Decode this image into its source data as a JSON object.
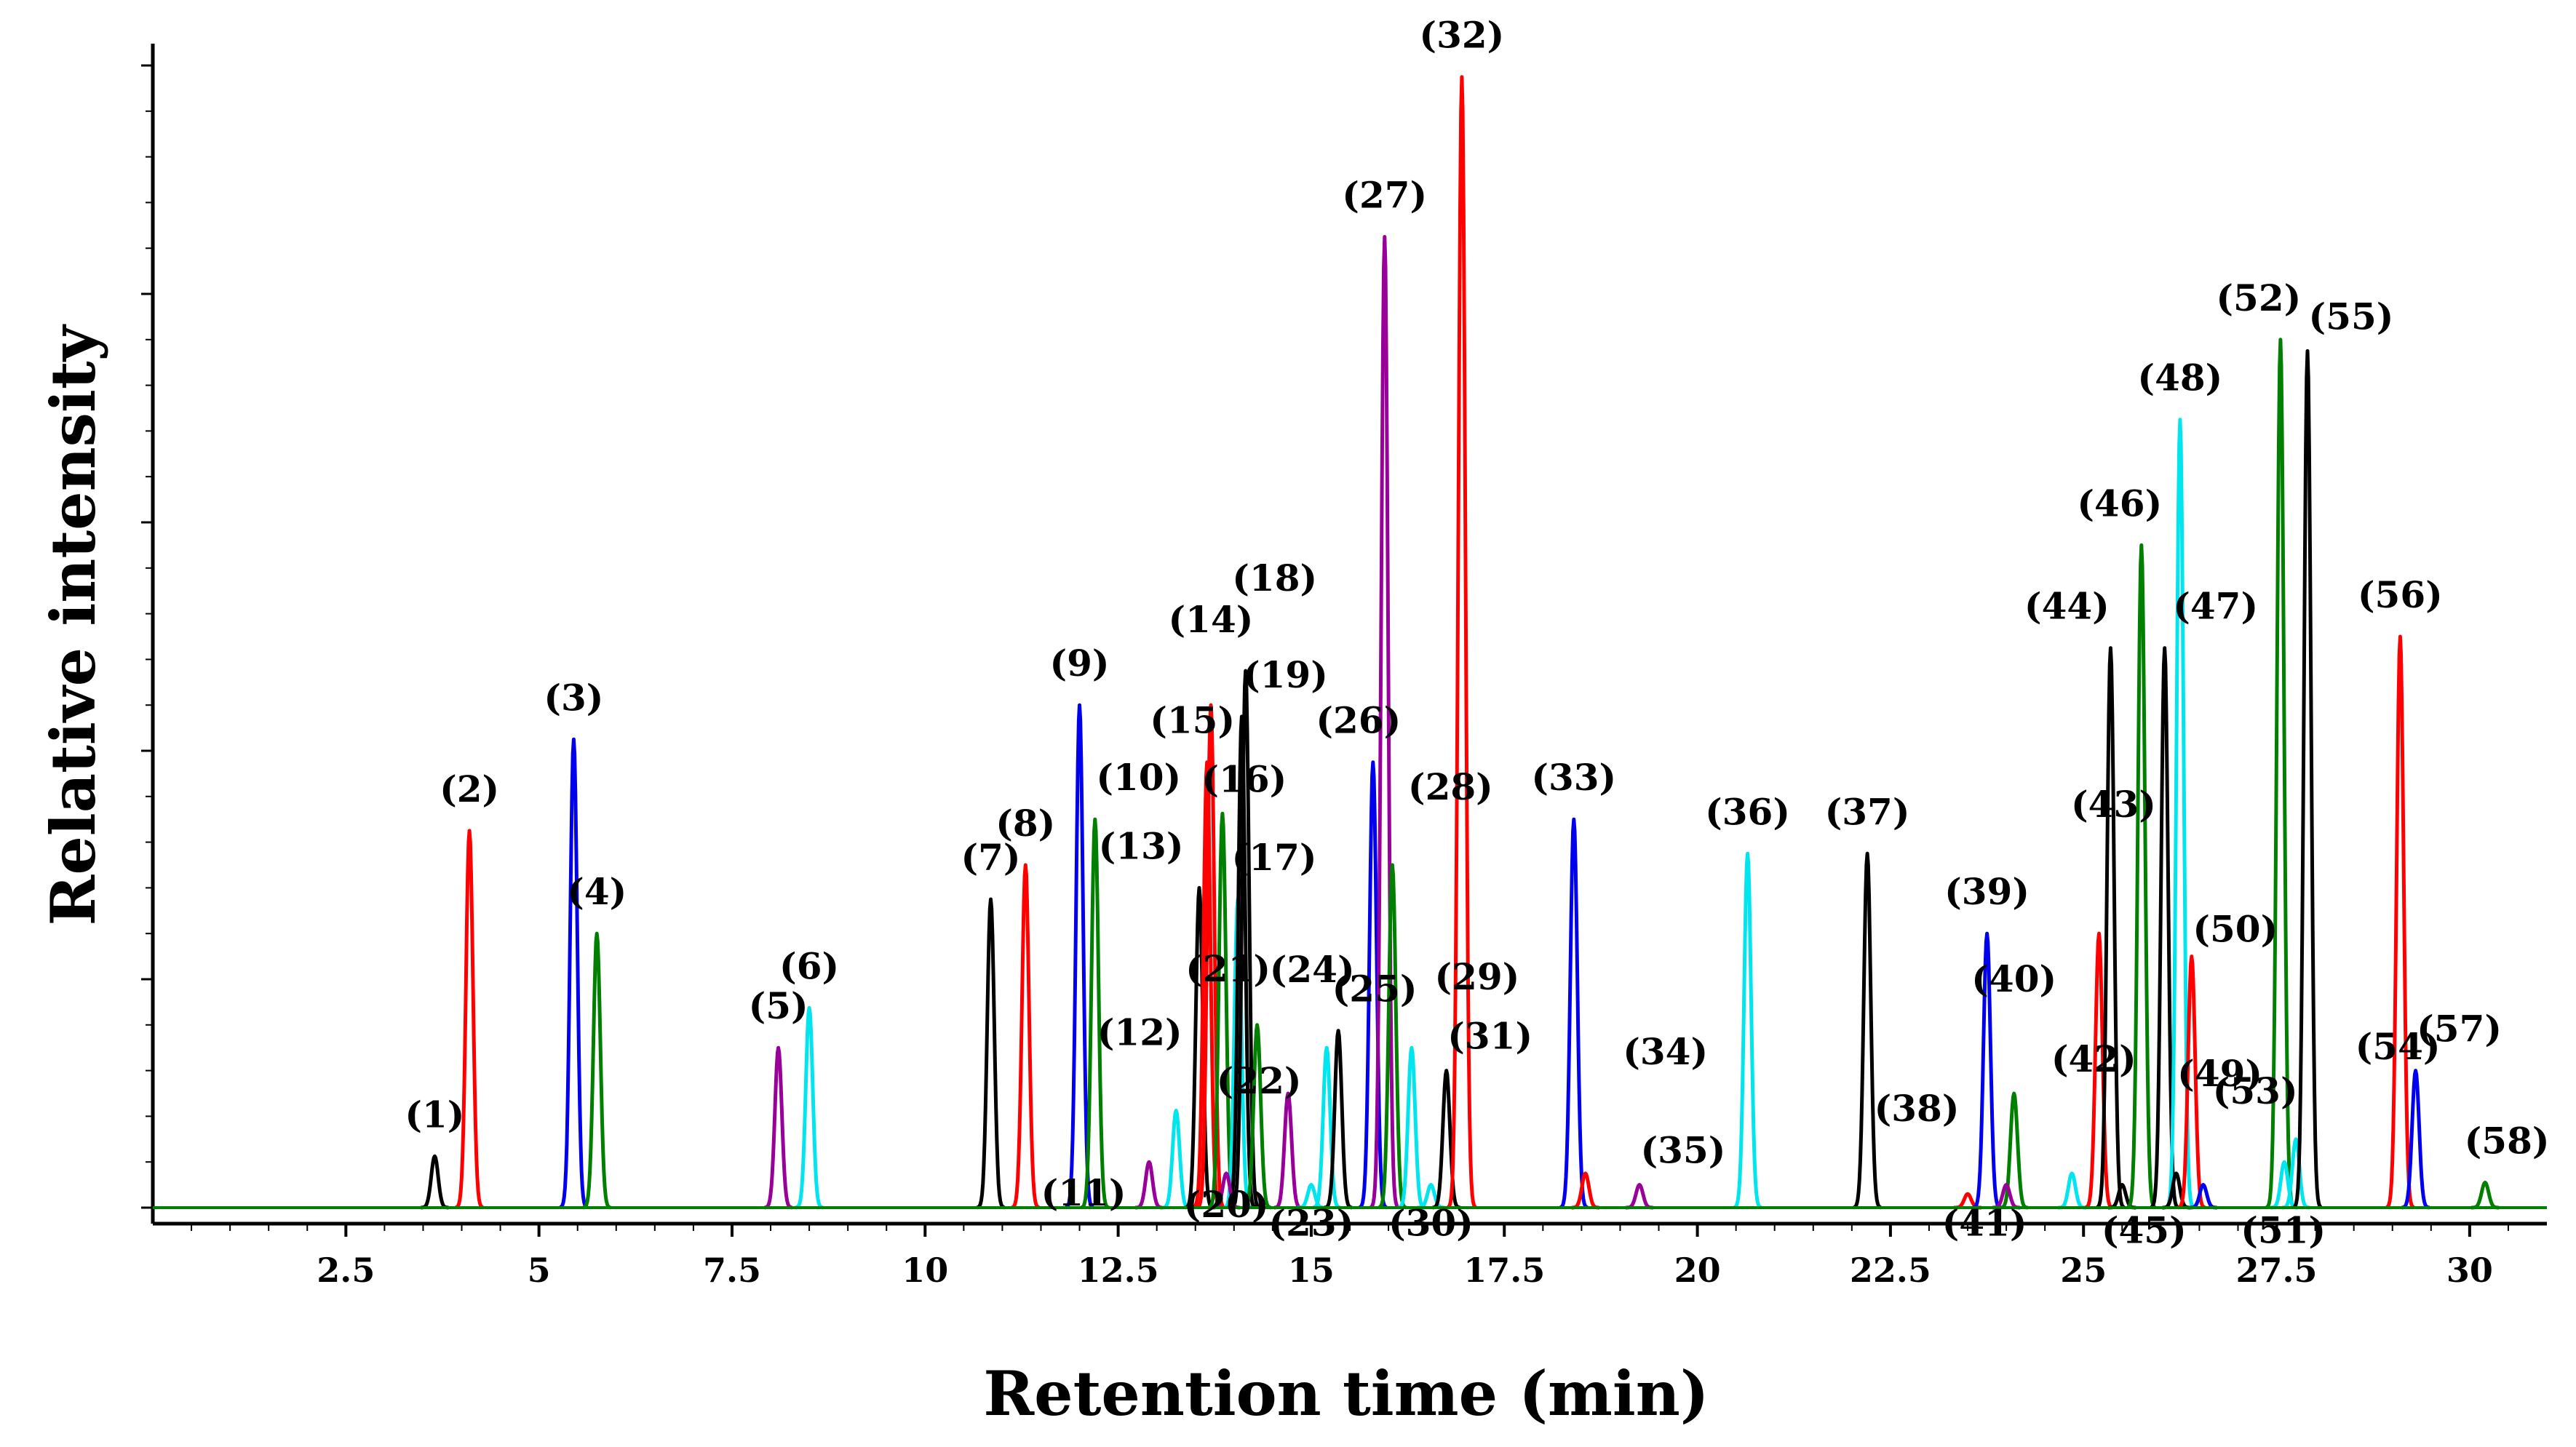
{
  "chart_data": {
    "type": "line",
    "title": "",
    "xlabel": "Retention time (min)",
    "ylabel": "Relative intensity",
    "xlim": [
      0,
      31
    ],
    "ylim": [
      0,
      100
    ],
    "x_ticks": [
      "2.5",
      "5",
      "7.5",
      "10",
      "12.5",
      "15",
      "17.5",
      "20",
      "22.5",
      "25",
      "27.5",
      "30"
    ],
    "x_tick_values": [
      2.5,
      5,
      7.5,
      10,
      12.5,
      15,
      17.5,
      20,
      22.5,
      25,
      27.5,
      30
    ],
    "colors": {
      "black": "#000000",
      "red": "#ff0000",
      "blue": "#0000ee",
      "green": "#007f00",
      "cyan": "#00e5ee",
      "purple": "#990099"
    },
    "peaks": [
      {
        "label": "(1)",
        "rt": 3.65,
        "height": 4.5,
        "color": "black"
      },
      {
        "label": "(2)",
        "rt": 4.1,
        "height": 33,
        "color": "red"
      },
      {
        "label": "(3)",
        "rt": 5.45,
        "height": 41,
        "color": "blue"
      },
      {
        "label": "(4)",
        "rt": 5.75,
        "height": 24,
        "color": "green"
      },
      {
        "label": "(5)",
        "rt": 8.1,
        "height": 14,
        "color": "purple"
      },
      {
        "label": "(6)",
        "rt": 8.5,
        "height": 17.5,
        "color": "cyan"
      },
      {
        "label": "(7)",
        "rt": 10.85,
        "height": 27,
        "color": "black"
      },
      {
        "label": "(8)",
        "rt": 11.3,
        "height": 30,
        "color": "red"
      },
      {
        "label": "(9)",
        "rt": 12.0,
        "height": 44,
        "color": "blue"
      },
      {
        "label": "(10)",
        "rt": 12.2,
        "height": 34,
        "color": "green"
      },
      {
        "label": "(11)",
        "rt": 12.9,
        "height": 4,
        "color": "purple"
      },
      {
        "label": "(12)",
        "rt": 13.25,
        "height": 8.5,
        "color": "cyan"
      },
      {
        "label": "(13)",
        "rt": 13.55,
        "height": 28,
        "color": "black"
      },
      {
        "label": "(14)",
        "rt": 13.7,
        "height": 44,
        "color": "red"
      },
      {
        "label": "(15)",
        "rt": 13.65,
        "height": 39,
        "color": "red"
      },
      {
        "label": "(16)",
        "rt": 13.85,
        "height": 34.5,
        "color": "green"
      },
      {
        "label": "(17)",
        "rt": 14.05,
        "height": 27,
        "color": "cyan"
      },
      {
        "label": "(18)",
        "rt": 14.15,
        "height": 47,
        "color": "black"
      },
      {
        "label": "(19)",
        "rt": 14.1,
        "height": 43,
        "color": "black"
      },
      {
        "label": "(20)",
        "rt": 13.9,
        "height": 3,
        "color": "purple"
      },
      {
        "label": "(21)",
        "rt": 14.3,
        "height": 16,
        "color": "green"
      },
      {
        "label": "(22)",
        "rt": 14.7,
        "height": 10,
        "color": "purple"
      },
      {
        "label": "(23)",
        "rt": 15.0,
        "height": 2,
        "color": "cyan"
      },
      {
        "label": "(24)",
        "rt": 15.2,
        "height": 14,
        "color": "cyan"
      },
      {
        "label": "(25)",
        "rt": 15.35,
        "height": 15.5,
        "color": "black"
      },
      {
        "label": "(26)",
        "rt": 15.8,
        "height": 39,
        "color": "blue"
      },
      {
        "label": "(27)",
        "rt": 15.95,
        "height": 85,
        "color": "purple"
      },
      {
        "label": "(28)",
        "rt": 16.05,
        "height": 30,
        "color": "green"
      },
      {
        "label": "(29)",
        "rt": 16.3,
        "height": 14,
        "color": "cyan"
      },
      {
        "label": "(30)",
        "rt": 16.55,
        "height": 2,
        "color": "cyan"
      },
      {
        "label": "(31)",
        "rt": 16.75,
        "height": 12,
        "color": "black"
      },
      {
        "label": "(32)",
        "rt": 16.95,
        "height": 99,
        "color": "red"
      },
      {
        "label": "(33)",
        "rt": 18.4,
        "height": 34,
        "color": "blue"
      },
      {
        "label": "(34)",
        "rt": 18.55,
        "height": 3,
        "color": "red"
      },
      {
        "label": "(35)",
        "rt": 19.25,
        "height": 2,
        "color": "purple"
      },
      {
        "label": "(36)",
        "rt": 20.65,
        "height": 31,
        "color": "cyan"
      },
      {
        "label": "(37)",
        "rt": 22.2,
        "height": 31,
        "color": "black"
      },
      {
        "label": "(38)",
        "rt": 23.5,
        "height": 1.2,
        "color": "red"
      },
      {
        "label": "(39)",
        "rt": 23.75,
        "height": 24,
        "color": "blue"
      },
      {
        "label": "(40)",
        "rt": 24.1,
        "height": 10,
        "color": "green"
      },
      {
        "label": "(41)",
        "rt": 24.0,
        "height": 2,
        "color": "purple"
      },
      {
        "label": "(42)",
        "rt": 24.85,
        "height": 3,
        "color": "cyan"
      },
      {
        "label": "(43)",
        "rt": 25.2,
        "height": 24,
        "color": "red"
      },
      {
        "label": "(44)",
        "rt": 25.35,
        "height": 49,
        "color": "black"
      },
      {
        "label": "(45)",
        "rt": 25.5,
        "height": 2,
        "color": "black"
      },
      {
        "label": "(46)",
        "rt": 25.75,
        "height": 58,
        "color": "green"
      },
      {
        "label": "(47)",
        "rt": 26.05,
        "height": 49,
        "color": "black"
      },
      {
        "label": "(48)",
        "rt": 26.25,
        "height": 69,
        "color": "cyan"
      },
      {
        "label": "(49)",
        "rt": 26.2,
        "height": 3,
        "color": "black"
      },
      {
        "label": "(50)",
        "rt": 26.4,
        "height": 22,
        "color": "red"
      },
      {
        "label": "(51)",
        "rt": 26.55,
        "height": 2,
        "color": "blue"
      },
      {
        "label": "(52)",
        "rt": 27.55,
        "height": 76,
        "color": "green"
      },
      {
        "label": "(53)",
        "rt": 27.6,
        "height": 4,
        "color": "cyan"
      },
      {
        "label": "(54)",
        "rt": 27.75,
        "height": 6,
        "color": "cyan"
      },
      {
        "label": "(55)",
        "rt": 27.9,
        "height": 75,
        "color": "black"
      },
      {
        "label": "(56)",
        "rt": 29.1,
        "height": 50,
        "color": "red"
      },
      {
        "label": "(57)",
        "rt": 29.3,
        "height": 12,
        "color": "blue"
      },
      {
        "label": "(58)",
        "rt": 30.2,
        "height": 2.2,
        "color": "green"
      }
    ]
  }
}
